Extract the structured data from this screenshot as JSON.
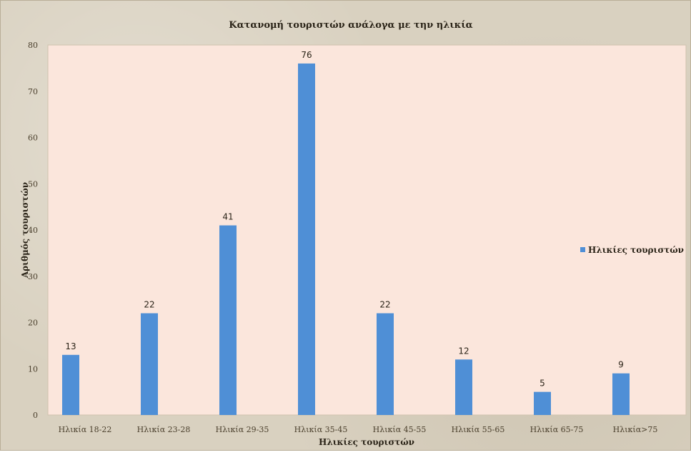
{
  "chart_data": {
    "type": "bar",
    "title": "Κατανομή τουριστών ανάλογα με την ηλικία",
    "xlabel": "Ηλικίες τουριστών",
    "ylabel": "Αριθμός τουριστών",
    "categories": [
      "Ηλικία 18-22",
      "Ηλικία 23-28",
      "Ηλικία 29-35",
      "Ηλικία 35-45",
      "Ηλικία 45-55",
      "Ηλικία 55-65",
      "Ηλικία 65-75",
      "Ηλικία>75"
    ],
    "series": [
      {
        "name": "Ηλικίες τουριστών",
        "values": [
          13,
          22,
          41,
          76,
          22,
          12,
          5,
          9
        ]
      }
    ],
    "ylim": [
      0,
      80
    ],
    "yticks": [
      0,
      10,
      20,
      30,
      40,
      50,
      60,
      70,
      80
    ],
    "grid": false,
    "legend": "right",
    "colors": {
      "bar": "#4f8fd6",
      "plot_bg": "#fbe6dc",
      "frame_bg": "#d9d1c0"
    }
  }
}
